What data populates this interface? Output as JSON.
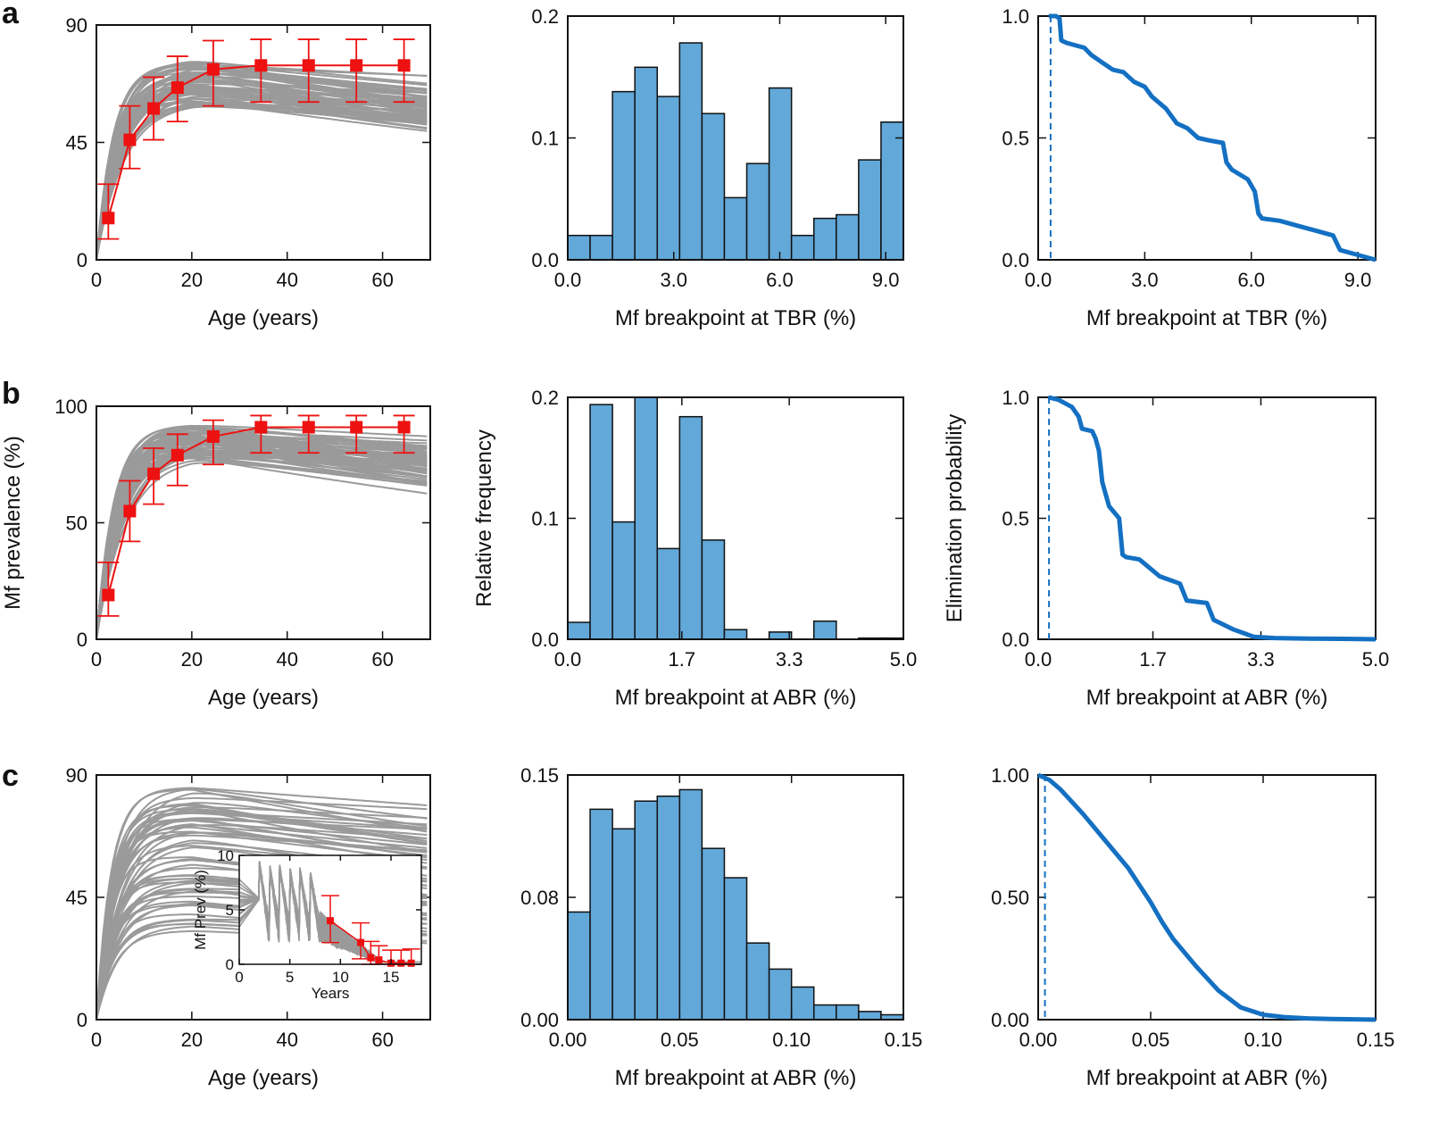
{
  "panel_letters": [
    "a",
    "b",
    "c"
  ],
  "colors": {
    "curve_gray": "#9a9a9a",
    "data_red": "#ee1111",
    "bar_fill": "#62a8d8",
    "bar_edge": "#111111",
    "line_blue": "#1470c2"
  },
  "chart_data": [
    {
      "id": "a1",
      "type": "line",
      "row": "a",
      "xlabel": "Age (years)",
      "ylabel": "",
      "xlim": [
        0,
        70
      ],
      "ylim": [
        0,
        90
      ],
      "xticks": [
        0,
        20,
        40,
        60
      ],
      "xticklabels": [
        "0",
        "20",
        "40",
        "60"
      ],
      "yticks": [
        0,
        45,
        90
      ],
      "yticklabels": [
        "0",
        "45",
        "90"
      ],
      "model_curves": {
        "color": "gray",
        "count": 60,
        "plateau_range": [
          60,
          77
        ],
        "rise_rate_range": [
          0.15,
          0.3
        ]
      },
      "observed": {
        "x": [
          2.5,
          7,
          12,
          17,
          24.5,
          34.5,
          44.5,
          54.5,
          64.5
        ],
        "y": [
          16,
          46,
          58,
          66,
          73,
          74.5,
          74.5,
          74.5,
          74.5
        ],
        "err_low": [
          8,
          11,
          12,
          13,
          14,
          14,
          14,
          14,
          14
        ],
        "err_high": [
          13,
          13,
          12,
          12,
          11,
          10,
          10,
          10,
          10
        ]
      }
    },
    {
      "id": "a2",
      "type": "bar",
      "row": "a",
      "xlabel": "Mf breakpoint at TBR (%)",
      "ylabel": "",
      "xlim": [
        0,
        9.5
      ],
      "ylim": [
        0,
        0.2
      ],
      "xticks": [
        0,
        3,
        6,
        9
      ],
      "xticklabels": [
        "0.0",
        "3.0",
        "6.0",
        "9.0"
      ],
      "yticks": [
        0,
        0.1,
        0.2
      ],
      "yticklabels": [
        "0.0",
        "0.1",
        "0.2"
      ],
      "bin_edges": [
        0,
        0.6333,
        1.2667,
        1.9,
        2.5333,
        3.1667,
        3.8,
        4.4333,
        5.0667,
        5.7,
        6.3333,
        6.9667,
        7.6,
        8.2333,
        8.8667,
        9.5
      ],
      "values": [
        0.02,
        0.02,
        0.138,
        0.158,
        0.134,
        0.178,
        0.12,
        0.051,
        0.079,
        0.141,
        0.02,
        0.034,
        0.037,
        0.082,
        0.113
      ]
    },
    {
      "id": "a3",
      "type": "line",
      "row": "a",
      "xlabel": "Mf breakpoint at TBR (%)",
      "ylabel": "",
      "xlim": [
        0,
        9.5
      ],
      "ylim": [
        0,
        1.0
      ],
      "xticks": [
        0,
        3,
        6,
        9
      ],
      "xticklabels": [
        "0.0",
        "3.0",
        "6.0",
        "9.0"
      ],
      "yticks": [
        0,
        0.5,
        1.0
      ],
      "yticklabels": [
        "0.0",
        "0.5",
        "1.0"
      ],
      "threshold_x": 0.35,
      "x": [
        0.3,
        0.5,
        0.6,
        0.65,
        0.8,
        1.3,
        1.5,
        1.8,
        2.1,
        2.4,
        2.7,
        3.0,
        3.2,
        3.6,
        3.9,
        4.2,
        4.5,
        4.8,
        5.2,
        5.3,
        5.45,
        5.9,
        6.1,
        6.2,
        6.3,
        6.8,
        7.3,
        7.8,
        8.3,
        8.5,
        9.0,
        9.5
      ],
      "y": [
        1.0,
        1.0,
        0.99,
        0.9,
        0.89,
        0.87,
        0.84,
        0.81,
        0.78,
        0.77,
        0.73,
        0.71,
        0.67,
        0.62,
        0.56,
        0.54,
        0.5,
        0.49,
        0.48,
        0.4,
        0.37,
        0.33,
        0.28,
        0.19,
        0.17,
        0.16,
        0.14,
        0.12,
        0.1,
        0.04,
        0.02,
        0.0
      ]
    },
    {
      "id": "b1",
      "type": "line",
      "row": "b",
      "xlabel": "Age (years)",
      "ylabel": "Mf prevalence (%)",
      "xlim": [
        0,
        70
      ],
      "ylim": [
        0,
        100
      ],
      "xticks": [
        0,
        20,
        40,
        60
      ],
      "xticklabels": [
        "0",
        "20",
        "40",
        "60"
      ],
      "yticks": [
        0,
        50,
        100
      ],
      "yticklabels": [
        "0",
        "50",
        "100"
      ],
      "model_curves": {
        "color": "gray",
        "count": 60,
        "plateau_range": [
          78,
          93
        ],
        "rise_rate_range": [
          0.16,
          0.3
        ]
      },
      "observed": {
        "x": [
          2.5,
          7,
          12,
          17,
          24.5,
          34.5,
          44.5,
          54.5,
          64.5
        ],
        "y": [
          19,
          55,
          71,
          79,
          87,
          91,
          91,
          91,
          91
        ],
        "err_low": [
          9,
          13,
          13,
          13,
          12,
          11,
          11,
          11,
          11
        ],
        "err_high": [
          14,
          13,
          11,
          9,
          7,
          5,
          5,
          5,
          5
        ]
      }
    },
    {
      "id": "b2",
      "type": "bar",
      "row": "b",
      "xlabel": "Mf breakpoint at ABR (%)",
      "ylabel": "Relative frequency",
      "xlim": [
        0,
        5.0
      ],
      "ylim": [
        0,
        0.2
      ],
      "xticks": [
        0,
        1.7,
        3.3,
        5.0
      ],
      "xticklabels": [
        "0.0",
        "1.7",
        "3.3",
        "5.0"
      ],
      "yticks": [
        0,
        0.1,
        0.2
      ],
      "yticklabels": [
        "0.0",
        "0.1",
        "0.2"
      ],
      "bin_edges": [
        0,
        0.3333,
        0.6667,
        1.0,
        1.3333,
        1.6667,
        2.0,
        2.3333,
        2.6667,
        3.0,
        3.3333,
        3.6667,
        4.0,
        4.3333,
        4.6667,
        5.0
      ],
      "values": [
        0.014,
        0.194,
        0.097,
        0.2,
        0.075,
        0.184,
        0.082,
        0.008,
        0.0,
        0.006,
        0.0,
        0.015,
        0.0,
        0.001,
        0.001
      ]
    },
    {
      "id": "b3",
      "type": "line",
      "row": "b",
      "xlabel": "Mf breakpoint at ABR (%)",
      "ylabel": "Elimination probability",
      "xlim": [
        0,
        5.0
      ],
      "ylim": [
        0,
        1.0
      ],
      "xticks": [
        0,
        1.7,
        3.3,
        5.0
      ],
      "xticklabels": [
        "0.0",
        "1.7",
        "3.3",
        "5.0"
      ],
      "yticks": [
        0,
        0.5,
        1.0
      ],
      "yticklabels": [
        "0.0",
        "0.5",
        "1.0"
      ],
      "threshold_x": 0.16,
      "x": [
        0.15,
        0.3,
        0.5,
        0.6,
        0.65,
        0.8,
        0.85,
        0.9,
        0.95,
        1.05,
        1.2,
        1.25,
        1.3,
        1.5,
        1.8,
        2.1,
        2.2,
        2.5,
        2.6,
        2.9,
        3.2,
        3.5,
        4.0,
        4.5,
        5.0
      ],
      "y": [
        1.0,
        0.99,
        0.96,
        0.92,
        0.87,
        0.86,
        0.83,
        0.78,
        0.65,
        0.55,
        0.5,
        0.35,
        0.34,
        0.33,
        0.26,
        0.23,
        0.16,
        0.15,
        0.08,
        0.04,
        0.01,
        0.005,
        0.003,
        0.002,
        0.0
      ]
    },
    {
      "id": "c1",
      "type": "line",
      "row": "c",
      "xlabel": "Age (years)",
      "ylabel": "",
      "xlim": [
        0,
        70
      ],
      "ylim": [
        0,
        90
      ],
      "xticks": [
        0,
        20,
        40,
        60
      ],
      "xticklabels": [
        "0",
        "20",
        "40",
        "60"
      ],
      "yticks": [
        0,
        45,
        90
      ],
      "yticklabels": [
        "0",
        "45",
        "90"
      ],
      "model_curves": {
        "color": "gray",
        "count": 60,
        "plateau_range": [
          32,
          86
        ],
        "rise_rate_range": [
          0.18,
          0.35
        ]
      },
      "inset": {
        "xlabel": "Years",
        "ylabel": "Mf Prev (%)",
        "xlim": [
          0,
          18
        ],
        "ylim": [
          0,
          10
        ],
        "xticks": [
          0,
          5,
          10,
          15
        ],
        "xticklabels": [
          "0",
          "5",
          "10",
          "15"
        ],
        "yticks": [
          0,
          5,
          10
        ],
        "yticklabels": [
          "0",
          "5",
          "10"
        ],
        "mda_rounds": [
          2,
          3,
          4,
          5,
          6,
          7
        ],
        "observed": {
          "x": [
            9,
            12,
            13,
            13.8,
            15,
            16,
            17
          ],
          "y": [
            4,
            2,
            0.6,
            0.4,
            0.1,
            0.1,
            0.1
          ],
          "err_low": [
            2,
            1.5,
            0.6,
            0.4,
            0.1,
            0.1,
            0.1
          ],
          "err_high": [
            2.3,
            1.8,
            1.5,
            1.3,
            1.2,
            1.2,
            1.3
          ]
        }
      }
    },
    {
      "id": "c2",
      "type": "bar",
      "row": "c",
      "xlabel": "Mf breakpoint at ABR (%)",
      "ylabel": "",
      "xlim": [
        0,
        0.15
      ],
      "ylim": [
        0,
        0.15
      ],
      "xticks": [
        0,
        0.05,
        0.1,
        0.15
      ],
      "xticklabels": [
        "0.00",
        "0.05",
        "0.10",
        "0.15"
      ],
      "yticks": [
        0,
        0.075,
        0.15
      ],
      "yticklabels": [
        "0.00",
        "0.08",
        "0.15"
      ],
      "bin_edges": [
        0,
        0.01,
        0.02,
        0.03,
        0.04,
        0.05,
        0.06,
        0.07,
        0.08,
        0.09,
        0.1,
        0.11,
        0.12,
        0.13,
        0.14,
        0.15
      ],
      "values": [
        0.066,
        0.129,
        0.117,
        0.134,
        0.137,
        0.141,
        0.105,
        0.087,
        0.047,
        0.031,
        0.02,
        0.009,
        0.009,
        0.005,
        0.003
      ]
    },
    {
      "id": "c3",
      "type": "line",
      "row": "c",
      "xlabel": "Mf breakpoint at ABR (%)",
      "ylabel": "",
      "xlim": [
        0,
        0.15
      ],
      "ylim": [
        0,
        1.0
      ],
      "xticks": [
        0,
        0.05,
        0.1,
        0.15
      ],
      "xticklabels": [
        "0.00",
        "0.05",
        "0.10",
        "0.15"
      ],
      "yticks": [
        0,
        0.5,
        1.0
      ],
      "yticklabels": [
        "0.00",
        "0.50",
        "1.00"
      ],
      "threshold_x": 0.003,
      "x": [
        0.0,
        0.005,
        0.01,
        0.02,
        0.03,
        0.04,
        0.05,
        0.055,
        0.06,
        0.07,
        0.08,
        0.09,
        0.1,
        0.11,
        0.12,
        0.13,
        0.15
      ],
      "y": [
        1.0,
        0.98,
        0.94,
        0.84,
        0.73,
        0.62,
        0.48,
        0.4,
        0.33,
        0.22,
        0.12,
        0.05,
        0.02,
        0.01,
        0.005,
        0.003,
        0.0
      ]
    }
  ]
}
